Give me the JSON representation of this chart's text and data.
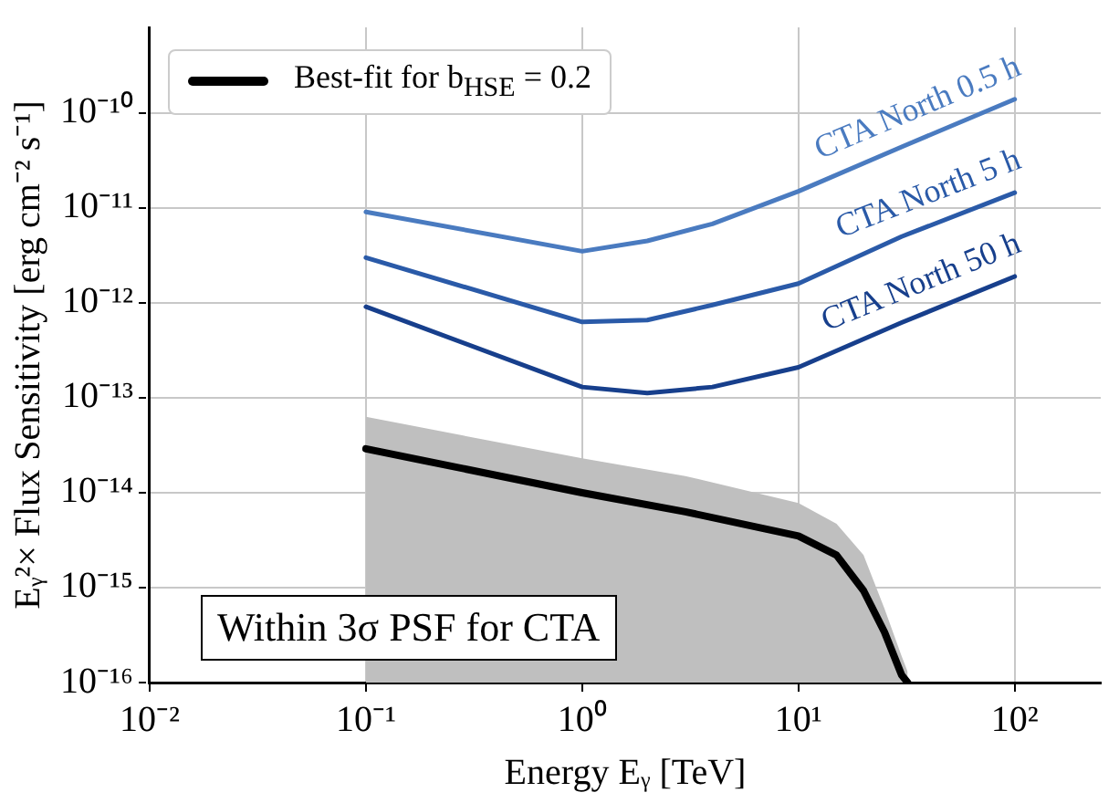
{
  "chart_data": {
    "type": "line",
    "xlabel": "Energy Eᵧ [TeV]",
    "ylabel": "Eᵧ²× Flux Sensitivity [erg cm⁻² s⁻¹]",
    "log": "xy",
    "xlim": [
      0.01,
      250
    ],
    "ylim": [
      1e-16,
      8e-10
    ],
    "xticks": [
      {
        "value": 0.01,
        "label": "10⁻²"
      },
      {
        "value": 0.1,
        "label": "10⁻¹"
      },
      {
        "value": 1,
        "label": "10⁰"
      },
      {
        "value": 10,
        "label": "10¹"
      },
      {
        "value": 100,
        "label": "10²"
      }
    ],
    "yticks": [
      {
        "value": 1e-16,
        "label": "10⁻¹⁶"
      },
      {
        "value": 1e-15,
        "label": "10⁻¹⁵"
      },
      {
        "value": 1e-14,
        "label": "10⁻¹⁴"
      },
      {
        "value": 1e-13,
        "label": "10⁻¹³"
      },
      {
        "value": 1e-12,
        "label": "10⁻¹²"
      },
      {
        "value": 1e-11,
        "label": "10⁻¹¹"
      },
      {
        "value": 1e-10,
        "label": "10⁻¹⁰"
      }
    ],
    "grid": true,
    "legend": "top left",
    "marker": "none",
    "line_style": "solid",
    "annotations": [
      "Within 3σ PSF for CTA"
    ],
    "series": [
      {
        "name": "CTA North 0.5 h",
        "color": "#4a7bc0",
        "x": [
          0.1,
          1,
          2,
          4,
          10,
          30,
          100
        ],
        "values": [
          9.1e-12,
          3.5e-12,
          4.5e-12,
          6.8e-12,
          1.5e-11,
          4.4e-11,
          1.4e-10
        ]
      },
      {
        "name": "CTA North 5 h",
        "color": "#2a5aa8",
        "x": [
          0.1,
          1,
          2,
          4,
          10,
          30,
          100
        ],
        "values": [
          3e-12,
          6.3e-13,
          6.6e-13,
          9.5e-13,
          1.6e-12,
          5e-12,
          1.45e-11
        ]
      },
      {
        "name": "CTA North 50 h",
        "color": "#173f8c",
        "x": [
          0.1,
          1,
          2,
          4,
          10,
          30,
          100
        ],
        "values": [
          9.1e-13,
          1.3e-13,
          1.12e-13,
          1.3e-13,
          2.1e-13,
          6.2e-13,
          1.9e-12
        ]
      },
      {
        "name": "Best-fit for b$_{HSE}$ = 0.2",
        "color": "#000000",
        "x": [
          0.1,
          1,
          3,
          10,
          15,
          20,
          25,
          30,
          32
        ],
        "values": [
          2.9e-14,
          1e-14,
          6.3e-15,
          3.5e-15,
          2.2e-15,
          9.3e-16,
          3.4e-16,
          1.2e-16,
          1e-16
        ],
        "lower": [
          1e-16,
          1e-16,
          1e-16,
          1e-16,
          1e-16,
          1e-16,
          1e-16,
          1e-16,
          1e-16
        ],
        "upper": [
          6.3e-14,
          2.3e-14,
          1.5e-14,
          7.8e-15,
          4.7e-15,
          2.2e-15,
          6e-16,
          1.9e-16,
          1.3e-16
        ]
      }
    ]
  }
}
